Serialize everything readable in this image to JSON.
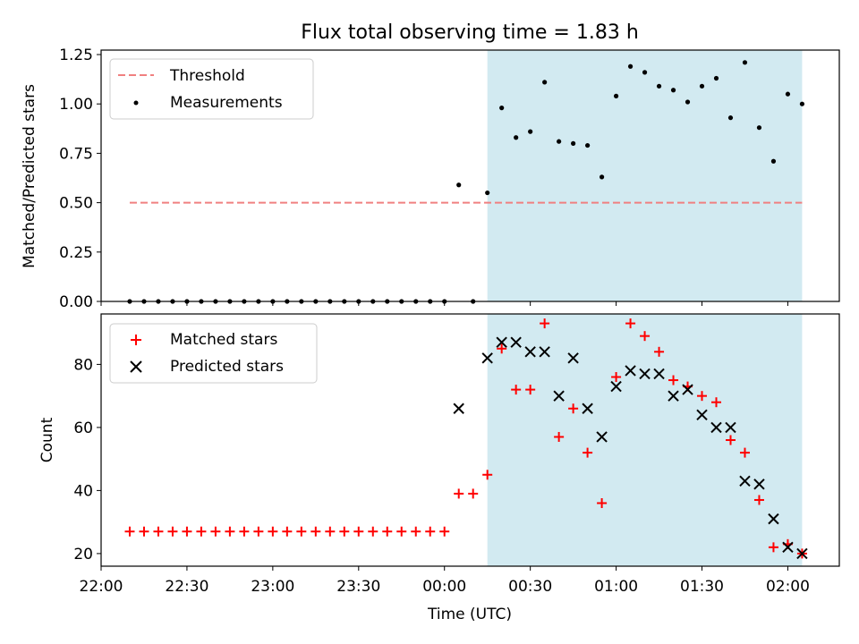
{
  "chart_data": [
    {
      "type": "scatter",
      "title": "Flux total observing time = 1.83 h",
      "ylabel": "Matched/Predicted stars",
      "xlabel": "",
      "xlim": [
        "22:00",
        "02:18"
      ],
      "ylim": [
        0,
        1.25
      ],
      "yticks": [
        "0.00",
        "0.25",
        "0.50",
        "0.75",
        "1.00",
        "1.25"
      ],
      "legend": {
        "placement": "top-left",
        "entries": [
          "Threshold",
          "Measurements"
        ]
      },
      "shaded_region": {
        "x_start": "00:15",
        "x_end": "02:05",
        "color": "#add8e6"
      },
      "series": [
        {
          "name": "Threshold",
          "kind": "dashed-line",
          "color": "#f08080",
          "x": [
            "22:10",
            "02:05"
          ],
          "y": [
            0.5,
            0.5
          ]
        },
        {
          "name": "Measurements",
          "kind": "dot",
          "color": "#000000",
          "x": [
            "22:10",
            "22:15",
            "22:20",
            "22:25",
            "22:30",
            "22:35",
            "22:40",
            "22:45",
            "22:50",
            "22:55",
            "23:00",
            "23:05",
            "23:10",
            "23:15",
            "23:20",
            "23:25",
            "23:30",
            "23:35",
            "23:40",
            "23:45",
            "23:50",
            "23:55",
            "00:00",
            "00:05",
            "00:10",
            "00:15",
            "00:20",
            "00:25",
            "00:30",
            "00:35",
            "00:40",
            "00:45",
            "00:50",
            "00:55",
            "01:00",
            "01:05",
            "01:10",
            "01:15",
            "01:20",
            "01:25",
            "01:30",
            "01:35",
            "01:40",
            "01:45",
            "01:50",
            "01:55",
            "02:00",
            "02:05"
          ],
          "y": [
            0,
            0,
            0,
            0,
            0,
            0,
            0,
            0,
            0,
            0,
            0,
            0,
            0,
            0,
            0,
            0,
            0,
            0,
            0,
            0,
            0,
            0,
            0,
            0.59,
            0,
            0.55,
            0.98,
            0.83,
            0.86,
            1.11,
            0.81,
            0.8,
            0.79,
            0.63,
            1.04,
            1.19,
            1.16,
            1.09,
            1.07,
            1.01,
            1.09,
            1.13,
            0.93,
            1.21,
            0.88,
            0.71,
            1.05,
            1.0
          ]
        }
      ]
    },
    {
      "type": "scatter",
      "title": "",
      "xlabel": "Time (UTC)",
      "ylabel": "Count",
      "xlim": [
        "22:00",
        "02:18"
      ],
      "ylim": [
        16,
        96
      ],
      "xticks": [
        "22:00",
        "22:30",
        "23:00",
        "23:30",
        "00:00",
        "00:30",
        "01:00",
        "01:30",
        "02:00"
      ],
      "yticks": [
        "20",
        "40",
        "60",
        "80"
      ],
      "legend": {
        "placement": "top-left",
        "entries": [
          "Matched stars",
          "Predicted stars"
        ]
      },
      "shaded_region": {
        "x_start": "00:15",
        "x_end": "02:05",
        "color": "#add8e6"
      },
      "series": [
        {
          "name": "Matched stars",
          "marker": "plus",
          "color": "#ff0000",
          "x": [
            "22:10",
            "22:15",
            "22:20",
            "22:25",
            "22:30",
            "22:35",
            "22:40",
            "22:45",
            "22:50",
            "22:55",
            "23:00",
            "23:05",
            "23:10",
            "23:15",
            "23:20",
            "23:25",
            "23:30",
            "23:35",
            "23:40",
            "23:45",
            "23:50",
            "23:55",
            "00:00",
            "00:05",
            "00:10",
            "00:15",
            "00:20",
            "00:25",
            "00:30",
            "00:35",
            "00:40",
            "00:45",
            "00:50",
            "00:55",
            "01:00",
            "01:05",
            "01:10",
            "01:15",
            "01:20",
            "01:25",
            "01:30",
            "01:35",
            "01:40",
            "01:45",
            "01:50",
            "01:55",
            "02:00",
            "02:05"
          ],
          "y": [
            27,
            27,
            27,
            27,
            27,
            27,
            27,
            27,
            27,
            27,
            27,
            27,
            27,
            27,
            27,
            27,
            27,
            27,
            27,
            27,
            27,
            27,
            27,
            39,
            39,
            45,
            85,
            72,
            72,
            93,
            57,
            66,
            52,
            36,
            76,
            93,
            89,
            84,
            75,
            73,
            70,
            68,
            56,
            52,
            37,
            22,
            23,
            20
          ]
        },
        {
          "name": "Predicted stars",
          "marker": "x",
          "color": "#000000",
          "x": [
            "00:05",
            "00:15",
            "00:20",
            "00:25",
            "00:30",
            "00:35",
            "00:40",
            "00:45",
            "00:50",
            "00:55",
            "01:00",
            "01:05",
            "01:10",
            "01:15",
            "01:20",
            "01:25",
            "01:30",
            "01:35",
            "01:40",
            "01:45",
            "01:50",
            "01:55",
            "02:00",
            "02:05"
          ],
          "y": [
            66,
            82,
            87,
            87,
            84,
            84,
            70,
            82,
            66,
            57,
            73,
            78,
            77,
            77,
            70,
            72,
            64,
            60,
            60,
            43,
            42,
            31,
            22,
            20
          ]
        }
      ]
    }
  ]
}
